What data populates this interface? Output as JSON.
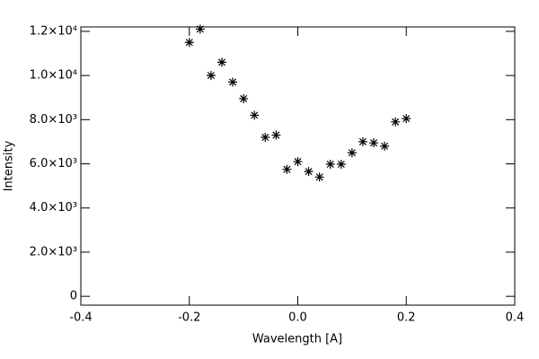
{
  "chart_data": {
    "type": "scatter",
    "x_label": "Wavelength [A]",
    "y_label": "Intensity",
    "color": "#000000",
    "marker": "asterisk",
    "x": [
      -0.2,
      -0.18,
      -0.16,
      -0.14,
      -0.12,
      -0.1,
      -0.08,
      -0.06,
      -0.04,
      -0.02,
      0.0,
      0.02,
      0.04,
      0.06,
      0.08,
      0.1,
      0.12,
      0.14,
      0.16,
      0.18,
      0.2
    ],
    "values": [
      11500,
      12100,
      10000,
      10600,
      9700,
      8950,
      8200,
      7200,
      7300,
      5750,
      6100,
      5650,
      5400,
      5980,
      5980,
      6500,
      7000,
      6950,
      6800,
      7900,
      8050
    ],
    "xlim": [
      -0.4,
      0.4
    ],
    "xticks": [
      -0.4,
      -0.2,
      {
        "value": 0,
        "label": "0.0"
      },
      0.2,
      0.4
    ],
    "ylim": [
      -400,
      12200
    ],
    "yticks": [
      0,
      {
        "value": 2000,
        "label": "2.0×10³"
      },
      {
        "value": 4000,
        "label": "4.0×10³"
      },
      {
        "value": 6000,
        "label": "6.0×10³"
      },
      {
        "value": 8000,
        "label": "8.0×10³"
      },
      {
        "value": 10000,
        "label": "1.0×10⁴"
      },
      {
        "value": 12000,
        "label": "1.2×10⁴"
      }
    ],
    "grid": false
  }
}
